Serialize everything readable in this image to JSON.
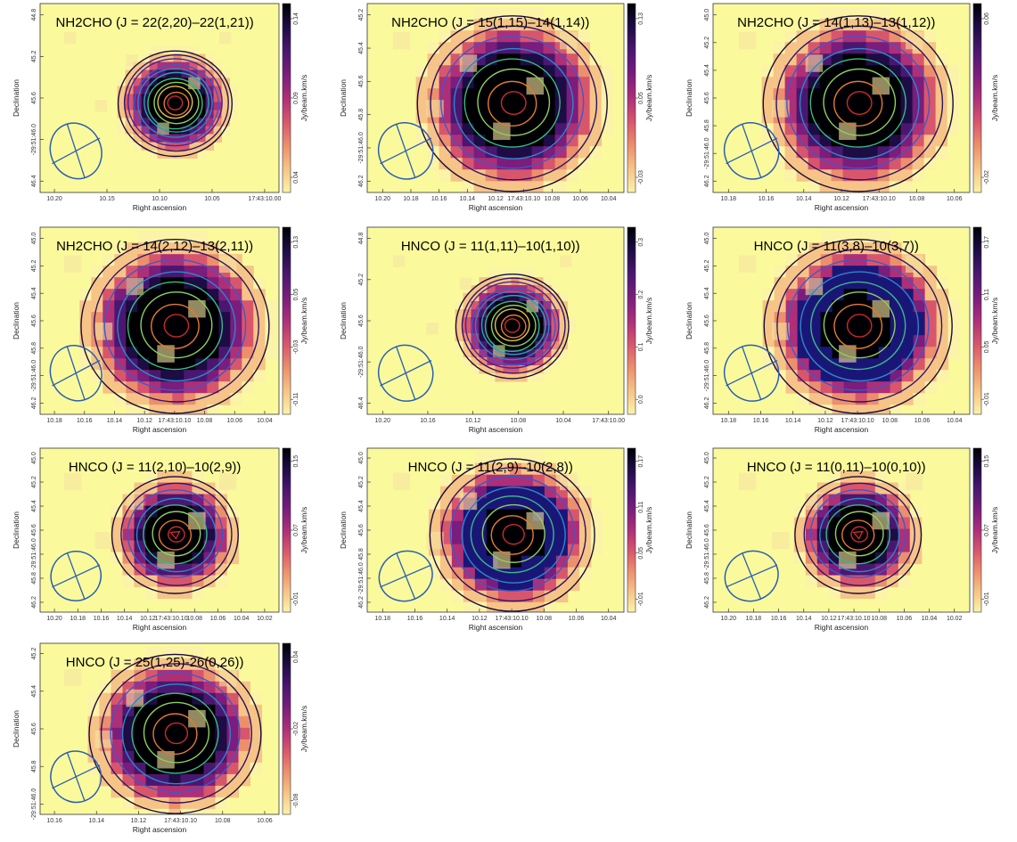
{
  "common": {
    "xlabel": "Right ascension",
    "ylabel": "Declination",
    "cblabel": "Jy/beam.km/s"
  },
  "colors": {
    "background": "#fafa9c",
    "beam": "#2a5fb0",
    "contours": [
      "#1a0a3a",
      "#2d1465",
      "#46239a",
      "#3e59c8",
      "#2f86c8",
      "#2aa5ad",
      "#39ba85",
      "#8fcf60",
      "#e3c23f",
      "#e37a2f",
      "#cc2a2a"
    ]
  },
  "panels": [
    {
      "title": "NH2CHO (J = 22(2,20)–22(1,21))",
      "xticks": [
        "10.20",
        "10.15",
        "10.10",
        "10.05",
        "17:43:10.00"
      ],
      "yticks": [
        "44.8",
        "45.2",
        "45.6",
        "-29:51:46.0",
        "46.4"
      ],
      "cbticks": [
        "0.14",
        "0.09",
        "0.04"
      ]
    },
    {
      "title": "NH2CHO (J = 15(1,15)–14(1,14))",
      "xticks": [
        "10.20",
        "10.18",
        "10.16",
        "10.14",
        "10.12",
        "17:43:10.10",
        "10.08",
        "10.06",
        "10.04"
      ],
      "yticks": [
        "45.2",
        "45.4",
        "45.6",
        "45.8",
        "-29:51:46.0",
        "46.2"
      ],
      "cbticks": [
        "0.13",
        "0.05",
        "-0.03"
      ]
    },
    {
      "title": "NH2CHO (J = 14(1,13)–13(1,12))",
      "xticks": [
        "10.18",
        "10.16",
        "10.14",
        "10.12",
        "17:43:10.10",
        "10.08",
        "10.06"
      ],
      "yticks": [
        "45.0",
        "45.2",
        "45.4",
        "45.6",
        "45.8",
        "-29:51:46.0",
        "46.2"
      ],
      "cbticks": [
        "0.06",
        "-0.02"
      ]
    },
    {
      "title": "NH2CHO (J = 14(2,12)–13(2,11))",
      "xticks": [
        "10.18",
        "10.16",
        "10.14",
        "10.12",
        "17:43:10.10",
        "10.08",
        "10.06",
        "10.04"
      ],
      "yticks": [
        "45.0",
        "45.2",
        "45.4",
        "45.6",
        "45.8",
        "-29:51:46.0",
        "46.2"
      ],
      "cbticks": [
        "0.13",
        "0.05",
        "-0.03",
        "-0.11"
      ]
    },
    {
      "title": "HNCO (J = 11(1,11)–10(1,10))",
      "xticks": [
        "10.20",
        "10.16",
        "10.12",
        "10.08",
        "10.04",
        "17:43:10.00"
      ],
      "yticks": [
        "44.8",
        "45.2",
        "45.6",
        "-29:51:46.0",
        "46.4"
      ],
      "cbticks": [
        "0.3",
        "0.2",
        "0.1",
        "0.0"
      ]
    },
    {
      "title": "HNCO (J = 11(3,8)–10(3,7))",
      "xticks": [
        "10.18",
        "10.16",
        "10.14",
        "10.12",
        "17:43:10.10",
        "10.08",
        "10.06",
        "10.04"
      ],
      "yticks": [
        "45.0",
        "45.2",
        "45.4",
        "45.6",
        "45.8",
        "-29:51:46.0",
        "46.2"
      ],
      "cbticks": [
        "0.17",
        "0.11",
        "0.05",
        "-0.01"
      ]
    },
    {
      "title": "HNCO (J = 11(2,10)–10(2,9))",
      "xticks": [
        "10.20",
        "10.18",
        "10.16",
        "10.14",
        "10.12",
        "17:43:10.10",
        "10.08",
        "10.06",
        "10.04",
        "10.02"
      ],
      "yticks": [
        "45.0",
        "45.2",
        "45.4",
        "45.6",
        "-29:51:46.0",
        "45.8",
        "46.2"
      ],
      "cbticks": [
        "0.15",
        "0.07",
        "-0.01"
      ]
    },
    {
      "title": "HNCO (J = 11(2,9)–10(2,8))",
      "xticks": [
        "10.18",
        "10.16",
        "10.14",
        "10.12",
        "17:43:10.10",
        "10.08",
        "10.06",
        "10.04"
      ],
      "yticks": [
        "45.0",
        "45.2",
        "45.4",
        "45.6",
        "45.8",
        "-29:51:46.0",
        "46.2"
      ],
      "cbticks": [
        "0.17",
        "0.11",
        "0.05",
        "-0.01"
      ]
    },
    {
      "title": "HNCO (J = 11(0,11)–10(0,10))",
      "xticks": [
        "10.20",
        "10.18",
        "10.16",
        "10.14",
        "10.12",
        "17:43:10.10",
        "10.08",
        "10.06",
        "10.04",
        "10.02"
      ],
      "yticks": [
        "45.0",
        "45.2",
        "45.4",
        "45.6",
        "-29:51:46.0",
        "45.8",
        "46.2"
      ],
      "cbticks": [
        "0.15",
        "0.07",
        "-0.01"
      ]
    },
    {
      "title": "HNCO (J = 25(1,25)-26(0,26))",
      "xticks": [
        "10.16",
        "10.14",
        "10.12",
        "17:43:10.10",
        "10.08",
        "10.06"
      ],
      "yticks": [
        "45.2",
        "45.4",
        "45.6",
        "45.8",
        "-29:51:46.0"
      ],
      "cbticks": [
        "0.04",
        "-0.02",
        "-0.08"
      ]
    }
  ]
}
